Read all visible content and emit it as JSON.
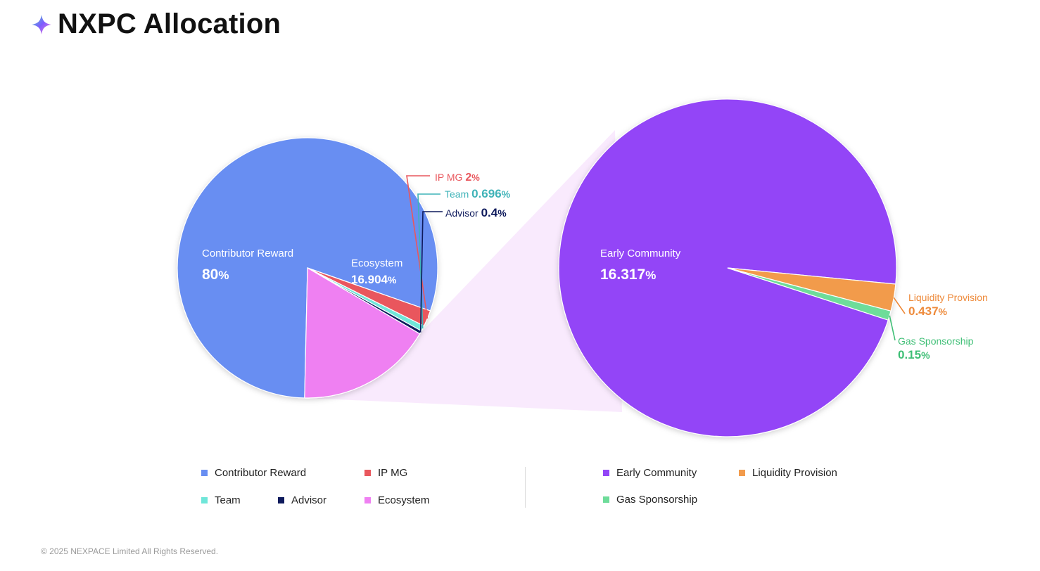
{
  "title": "NXPC Allocation",
  "footer": "© 2025 NEXPACE Limited All Rights Reserved.",
  "logo": {
    "icon": "four-point-star-icon",
    "colors": [
      "#7c5cff",
      "#4fd6c4",
      "#ff7bd5"
    ]
  },
  "chart_data": [
    {
      "type": "pie",
      "slices": [
        {
          "name": "Contributor Reward",
          "value": 80,
          "label": "80",
          "unit": "%",
          "color": "#688ef2"
        },
        {
          "name": "IP MG",
          "value": 2,
          "label": "2",
          "unit": "%",
          "color": "#e9575d"
        },
        {
          "name": "Team",
          "value": 0.696,
          "label": "0.696",
          "unit": "%",
          "color": "#6fe6d9"
        },
        {
          "name": "Advisor",
          "value": 0.4,
          "label": "0.4",
          "unit": "%",
          "color": "#0e1a5c"
        },
        {
          "name": "Ecosystem",
          "value": 16.904,
          "label": "16.904",
          "unit": "%",
          "color": "#ef80f2"
        }
      ]
    },
    {
      "type": "pie",
      "slices": [
        {
          "name": "Early Community",
          "value": 16.317,
          "label": "16.317",
          "unit": "%",
          "color": "#9345f7"
        },
        {
          "name": "Liquidity Provision",
          "value": 0.437,
          "label": "0.437",
          "unit": "%",
          "color": "#f29b4c"
        },
        {
          "name": "Gas Sponsorship",
          "value": 0.15,
          "label": "0.15",
          "unit": "%",
          "color": "#6edc9a"
        }
      ]
    }
  ],
  "annotation_colors": {
    "IP MG": "#e9575d",
    "Team": "#3fb3b8",
    "Advisor": "#0e1a5c",
    "Liquidity Provision": "#ee8a3a",
    "Gas Sponsorship": "#3fbf76"
  },
  "legend_left": [
    {
      "name": "Contributor Reward",
      "color": "#688ef2"
    },
    {
      "name": "IP MG",
      "color": "#e9575d"
    },
    {
      "name": "Team",
      "color": "#6fe6d9"
    },
    {
      "name": "Advisor",
      "color": "#0e1a5c"
    },
    {
      "name": "Ecosystem",
      "color": "#ef80f2"
    }
  ],
  "legend_right": [
    {
      "name": "Early Community",
      "color": "#9345f7"
    },
    {
      "name": "Liquidity Provision",
      "color": "#f29b4c"
    },
    {
      "name": "Gas Sponsorship",
      "color": "#6edc9a"
    }
  ]
}
